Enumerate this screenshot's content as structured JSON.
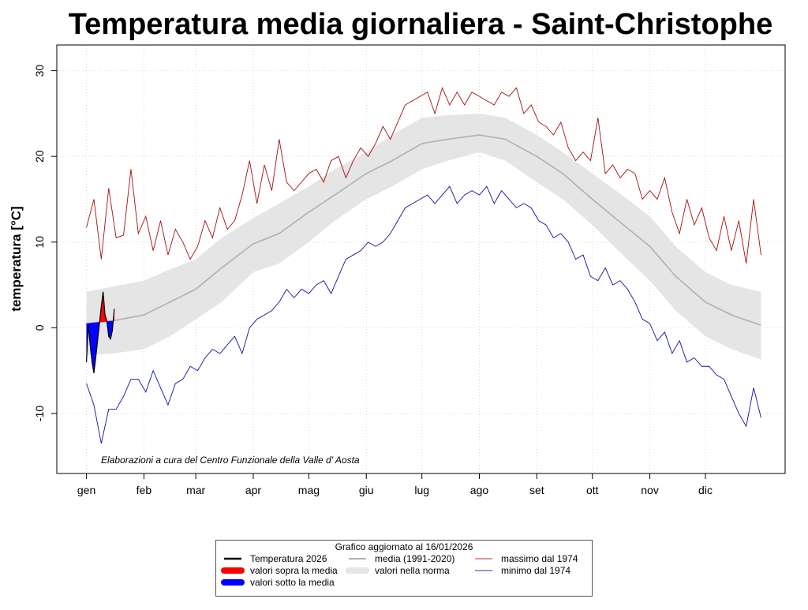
{
  "chart_data": {
    "type": "line",
    "title": "Temperatura media giornaliera - Saint-Christophe",
    "xlabel": "",
    "ylabel": "temperatura [°C]",
    "ylim": [
      -17,
      33
    ],
    "xlim": [
      -15,
      378
    ],
    "grid": true,
    "x_ticks": [
      {
        "label": "gen",
        "day": 1
      },
      {
        "label": "feb",
        "day": 32
      },
      {
        "label": "mar",
        "day": 60
      },
      {
        "label": "apr",
        "day": 91
      },
      {
        "label": "mag",
        "day": 121
      },
      {
        "label": "giu",
        "day": 152
      },
      {
        "label": "lug",
        "day": 182
      },
      {
        "label": "ago",
        "day": 213
      },
      {
        "label": "set",
        "day": 244
      },
      {
        "label": "ott",
        "day": 274
      },
      {
        "label": "nov",
        "day": 305
      },
      {
        "label": "dic",
        "day": 335
      }
    ],
    "y_ticks": [
      -10,
      0,
      10,
      20,
      30
    ],
    "annotation": "Elaborazioni a cura del Centro Funzionale della Valle d' Aosta",
    "colors": {
      "current": "#000000",
      "above": "#ff0000",
      "below": "#0000ff",
      "mean": "#b0b0b0",
      "band": "#e5e5e5",
      "max": "#a01010",
      "min": "#1010a0"
    },
    "max_series": {
      "name": "massimo dal 1974",
      "day_start": 1,
      "day_step": 4,
      "values": [
        11.7,
        15.0,
        8.0,
        16.3,
        10.5,
        10.8,
        18.5,
        11.0,
        13.0,
        9.0,
        12.5,
        8.5,
        11.5,
        10.0,
        8.0,
        9.5,
        12.5,
        10.5,
        14.0,
        11.5,
        12.5,
        15.5,
        19.5,
        14.5,
        19.0,
        16.0,
        22.0,
        17.0,
        16.0,
        17.0,
        18.0,
        18.5,
        17.0,
        19.5,
        20.0,
        17.5,
        19.5,
        21.0,
        20.0,
        21.5,
        23.5,
        22.0,
        24.0,
        26.0,
        26.5,
        27.0,
        27.5,
        25.0,
        28.0,
        26.0,
        27.5,
        26.0,
        27.5,
        27.0,
        26.5,
        26.0,
        27.5,
        27.0,
        28.0,
        25.0,
        26.0,
        24.0,
        23.5,
        22.5,
        24.0,
        21.0,
        19.5,
        20.5,
        19.5,
        24.5,
        18.0,
        19.0,
        17.5,
        18.5,
        18.0,
        15.0,
        16.0,
        15.0,
        17.5,
        13.5,
        11.0,
        15.0,
        12.0,
        14.0,
        10.5,
        9.0,
        13.0,
        9.0,
        12.5,
        7.5,
        15.0,
        8.5
      ]
    },
    "min_series": {
      "name": "minimo dal 1974",
      "day_start": 1,
      "day_step": 4,
      "values": [
        -6.5,
        -9.0,
        -13.5,
        -9.5,
        -9.5,
        -8.0,
        -6.0,
        -6.0,
        -7.5,
        -5.0,
        -7.0,
        -9.0,
        -6.5,
        -6.0,
        -4.5,
        -5.0,
        -3.5,
        -2.5,
        -3.0,
        -2.0,
        -1.0,
        -3.0,
        0.0,
        1.0,
        1.5,
        2.0,
        3.0,
        4.5,
        3.5,
        4.5,
        4.0,
        5.0,
        5.5,
        4.0,
        6.0,
        8.0,
        8.5,
        9.0,
        10.0,
        9.5,
        10.0,
        11.0,
        12.5,
        14.0,
        14.5,
        15.0,
        15.5,
        14.5,
        15.5,
        16.5,
        14.5,
        15.5,
        16.0,
        15.5,
        16.5,
        14.5,
        16.0,
        15.0,
        14.0,
        14.5,
        14.0,
        12.5,
        12.0,
        10.5,
        11.0,
        10.0,
        8.0,
        8.5,
        6.0,
        5.5,
        7.0,
        5.0,
        5.5,
        4.5,
        3.0,
        1.0,
        0.5,
        -1.5,
        -0.5,
        -3.0,
        -1.5,
        -4.0,
        -3.5,
        -4.5,
        -4.5,
        -5.5,
        -6.0,
        -8.0,
        -10.0,
        -11.5,
        -7.0,
        -10.5
      ]
    },
    "climatology": {
      "mean_name": "media (1991-2020)",
      "band_name": "valori nella norma",
      "days": [
        1,
        15,
        32,
        46,
        60,
        74,
        91,
        105,
        121,
        135,
        152,
        166,
        182,
        196,
        213,
        227,
        244,
        258,
        274,
        288,
        305,
        319,
        335,
        349,
        365
      ],
      "mean": [
        0.5,
        0.8,
        1.5,
        3.0,
        4.5,
        7.0,
        9.8,
        11.0,
        13.5,
        15.5,
        18.0,
        19.5,
        21.5,
        22.0,
        22.5,
        22.0,
        20.0,
        18.0,
        15.0,
        12.5,
        9.5,
        6.0,
        3.0,
        1.5,
        0.3
      ],
      "upper": [
        4.2,
        4.8,
        5.5,
        6.8,
        8.0,
        10.5,
        12.8,
        14.5,
        16.5,
        18.5,
        20.5,
        22.5,
        24.5,
        24.8,
        25.0,
        24.5,
        22.5,
        20.5,
        18.0,
        15.8,
        13.0,
        9.5,
        6.5,
        5.0,
        4.2
      ],
      "lower": [
        -3.2,
        -3.0,
        -2.5,
        -1.0,
        1.0,
        3.0,
        6.5,
        7.5,
        10.0,
        12.5,
        15.0,
        16.5,
        18.5,
        19.5,
        20.5,
        19.5,
        17.0,
        15.0,
        12.0,
        9.0,
        5.5,
        2.0,
        -1.0,
        -2.5,
        -3.7
      ]
    },
    "current_series": {
      "name": "Temperatura  2026",
      "day_start": 1,
      "day_step": 1,
      "values": [
        -4.0,
        0.3,
        -2.0,
        -4.0,
        -5.3,
        -3.5,
        -1.5,
        0.5,
        2.5,
        4.2,
        1.5,
        0.8,
        -1.0,
        -1.3,
        -0.3,
        2.2
      ]
    },
    "legend": {
      "title": "Grafico aggiornato al 16/01/2026",
      "placement": "bottom",
      "items": [
        {
          "label": "Temperatura  2026",
          "color": "#000000",
          "style": "thick-line"
        },
        {
          "label": "valori sopra la media",
          "color": "#ff0000",
          "style": "bar"
        },
        {
          "label": "valori sotto la media",
          "color": "#0000ff",
          "style": "bar"
        },
        {
          "label": "media (1991-2020)",
          "color": "#b0b0b0",
          "style": "line"
        },
        {
          "label": "valori nella norma",
          "color": "#e5e5e5",
          "style": "bar"
        },
        {
          "label": "massimo dal 1974",
          "color": "#b03030",
          "style": "thin-line"
        },
        {
          "label": "minimo dal 1974",
          "color": "#3030a0",
          "style": "thin-line"
        }
      ]
    }
  }
}
